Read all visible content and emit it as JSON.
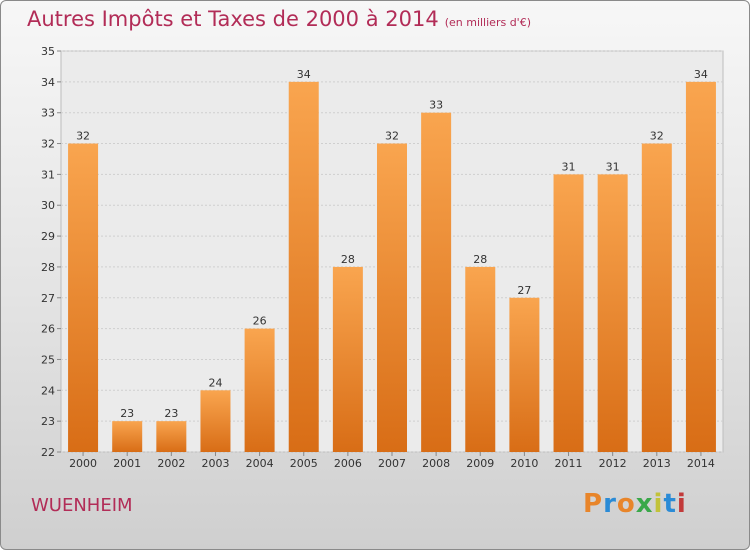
{
  "title": "Autres Impôts et Taxes de 2000 à 2014",
  "subtitle": "(en milliers d'€)",
  "commune": "WUENHEIM",
  "logo": {
    "text": "Proxiti",
    "colors": [
      "#e8852a",
      "#2a8bd6",
      "#e8852a",
      "#3aa84a",
      "#c2c23a",
      "#2a8bd6",
      "#c23a3a"
    ]
  },
  "chart_data": {
    "type": "bar",
    "categories": [
      "2000",
      "2001",
      "2002",
      "2003",
      "2004",
      "2005",
      "2006",
      "2007",
      "2008",
      "2009",
      "2010",
      "2011",
      "2012",
      "2013",
      "2014"
    ],
    "values": [
      32,
      23,
      23,
      24,
      26,
      34,
      28,
      32,
      33,
      28,
      27,
      31,
      31,
      32,
      34
    ],
    "title": "Autres Impôts et Taxes de 2000 à 2014",
    "ylim": [
      22,
      35
    ],
    "yticks": [
      22,
      23,
      24,
      25,
      26,
      27,
      28,
      29,
      30,
      31,
      32,
      33,
      34,
      35
    ],
    "grid": true,
    "bar_color": "#f0943e"
  }
}
